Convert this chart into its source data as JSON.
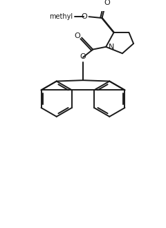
{
  "background": "#ffffff",
  "line_color": "#1a1a1a",
  "lw": 1.4,
  "fig_width": 2.4,
  "fig_height": 3.3,
  "dpi": 100,
  "xlim": [
    0,
    240
  ],
  "ylim": [
    0,
    330
  ]
}
